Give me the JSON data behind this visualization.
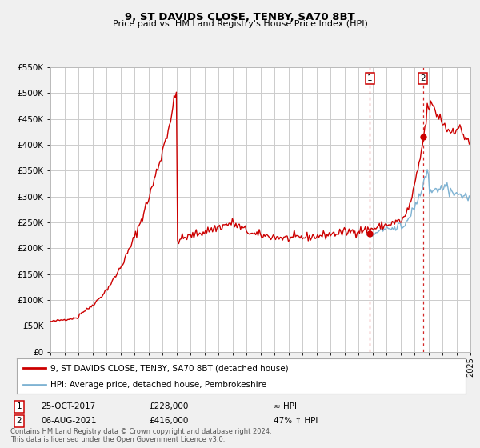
{
  "title": "9, ST DAVIDS CLOSE, TENBY, SA70 8BT",
  "subtitle": "Price paid vs. HM Land Registry's House Price Index (HPI)",
  "legend_line1": "9, ST DAVIDS CLOSE, TENBY, SA70 8BT (detached house)",
  "legend_line2": "HPI: Average price, detached house, Pembrokeshire",
  "annotation1_label": "1",
  "annotation1_date": "25-OCT-2017",
  "annotation1_price": "£228,000",
  "annotation1_hpi": "≈ HPI",
  "annotation2_label": "2",
  "annotation2_date": "06-AUG-2021",
  "annotation2_price": "£416,000",
  "annotation2_hpi": "47% ↑ HPI",
  "footnote1": "Contains HM Land Registry data © Crown copyright and database right 2024.",
  "footnote2": "This data is licensed under the Open Government Licence v3.0.",
  "sale1_year": 2017.82,
  "sale1_price": 228000,
  "sale2_year": 2021.6,
  "sale2_price": 416000,
  "hpi_color": "#7fb3d3",
  "sale_color": "#cc0000",
  "dot_color": "#cc0000",
  "vline_color": "#cc0000",
  "bg_color": "#f0f0f0",
  "plot_bg_color": "#ffffff",
  "grid_color": "#cccccc",
  "ylim_max": 550000,
  "ylim_min": 0,
  "xmin": 1995,
  "xmax": 2025
}
